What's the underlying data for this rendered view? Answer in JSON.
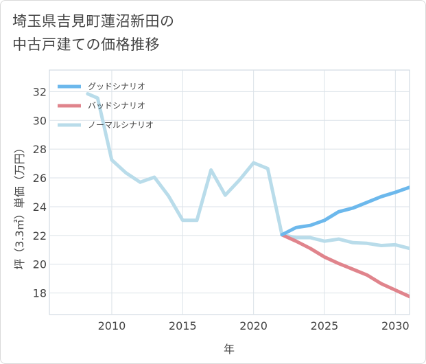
{
  "header": {
    "title_line1": "埼玉県吉見町蓮沼新田の",
    "title_line2": "中古戸建ての価格推移"
  },
  "chart_data": {
    "type": "line",
    "title": "埼玉県吉見町蓮沼新田の中古戸建ての価格推移",
    "xlabel": "年",
    "ylabel": "坪（3.3㎡）単価（万円）",
    "xlim": [
      2005.6,
      2031
    ],
    "ylim": [
      16.5,
      33.5
    ],
    "xticks": [
      2010,
      2015,
      2020,
      2025,
      2030
    ],
    "yticks": [
      18,
      20,
      22,
      24,
      26,
      28,
      30,
      32
    ],
    "grid": true,
    "legend_position": "top-left",
    "series": [
      {
        "name": "グッドシナリオ",
        "color": "#6cb8ec",
        "x": [
          2022,
          2023,
          2024,
          2025,
          2026,
          2027,
          2028,
          2029,
          2030,
          2031
        ],
        "y": [
          22.05,
          22.55,
          22.7,
          23.05,
          23.65,
          23.9,
          24.3,
          24.7,
          25.0,
          25.35
        ]
      },
      {
        "name": "バッドシナリオ",
        "color": "#e0848c",
        "x": [
          2022,
          2023,
          2024,
          2025,
          2026,
          2027,
          2028,
          2029,
          2030,
          2031
        ],
        "y": [
          22.05,
          21.6,
          21.1,
          20.5,
          20.05,
          19.65,
          19.25,
          18.65,
          18.2,
          17.75
        ]
      },
      {
        "name": "ノーマルシナリオ",
        "color": "#b9dcea",
        "x": [
          2008.3,
          2009,
          2010,
          2011,
          2012,
          2013,
          2014,
          2015,
          2016,
          2017,
          2018,
          2019,
          2020,
          2021,
          2022,
          2023,
          2024,
          2025,
          2026,
          2027,
          2028,
          2029,
          2030,
          2031
        ],
        "y": [
          31.85,
          31.55,
          27.25,
          26.35,
          25.7,
          26.05,
          24.75,
          23.05,
          23.05,
          26.55,
          24.8,
          25.85,
          27.05,
          26.65,
          22.05,
          21.85,
          21.85,
          21.6,
          21.75,
          21.5,
          21.45,
          21.3,
          21.35,
          21.1
        ]
      }
    ]
  }
}
